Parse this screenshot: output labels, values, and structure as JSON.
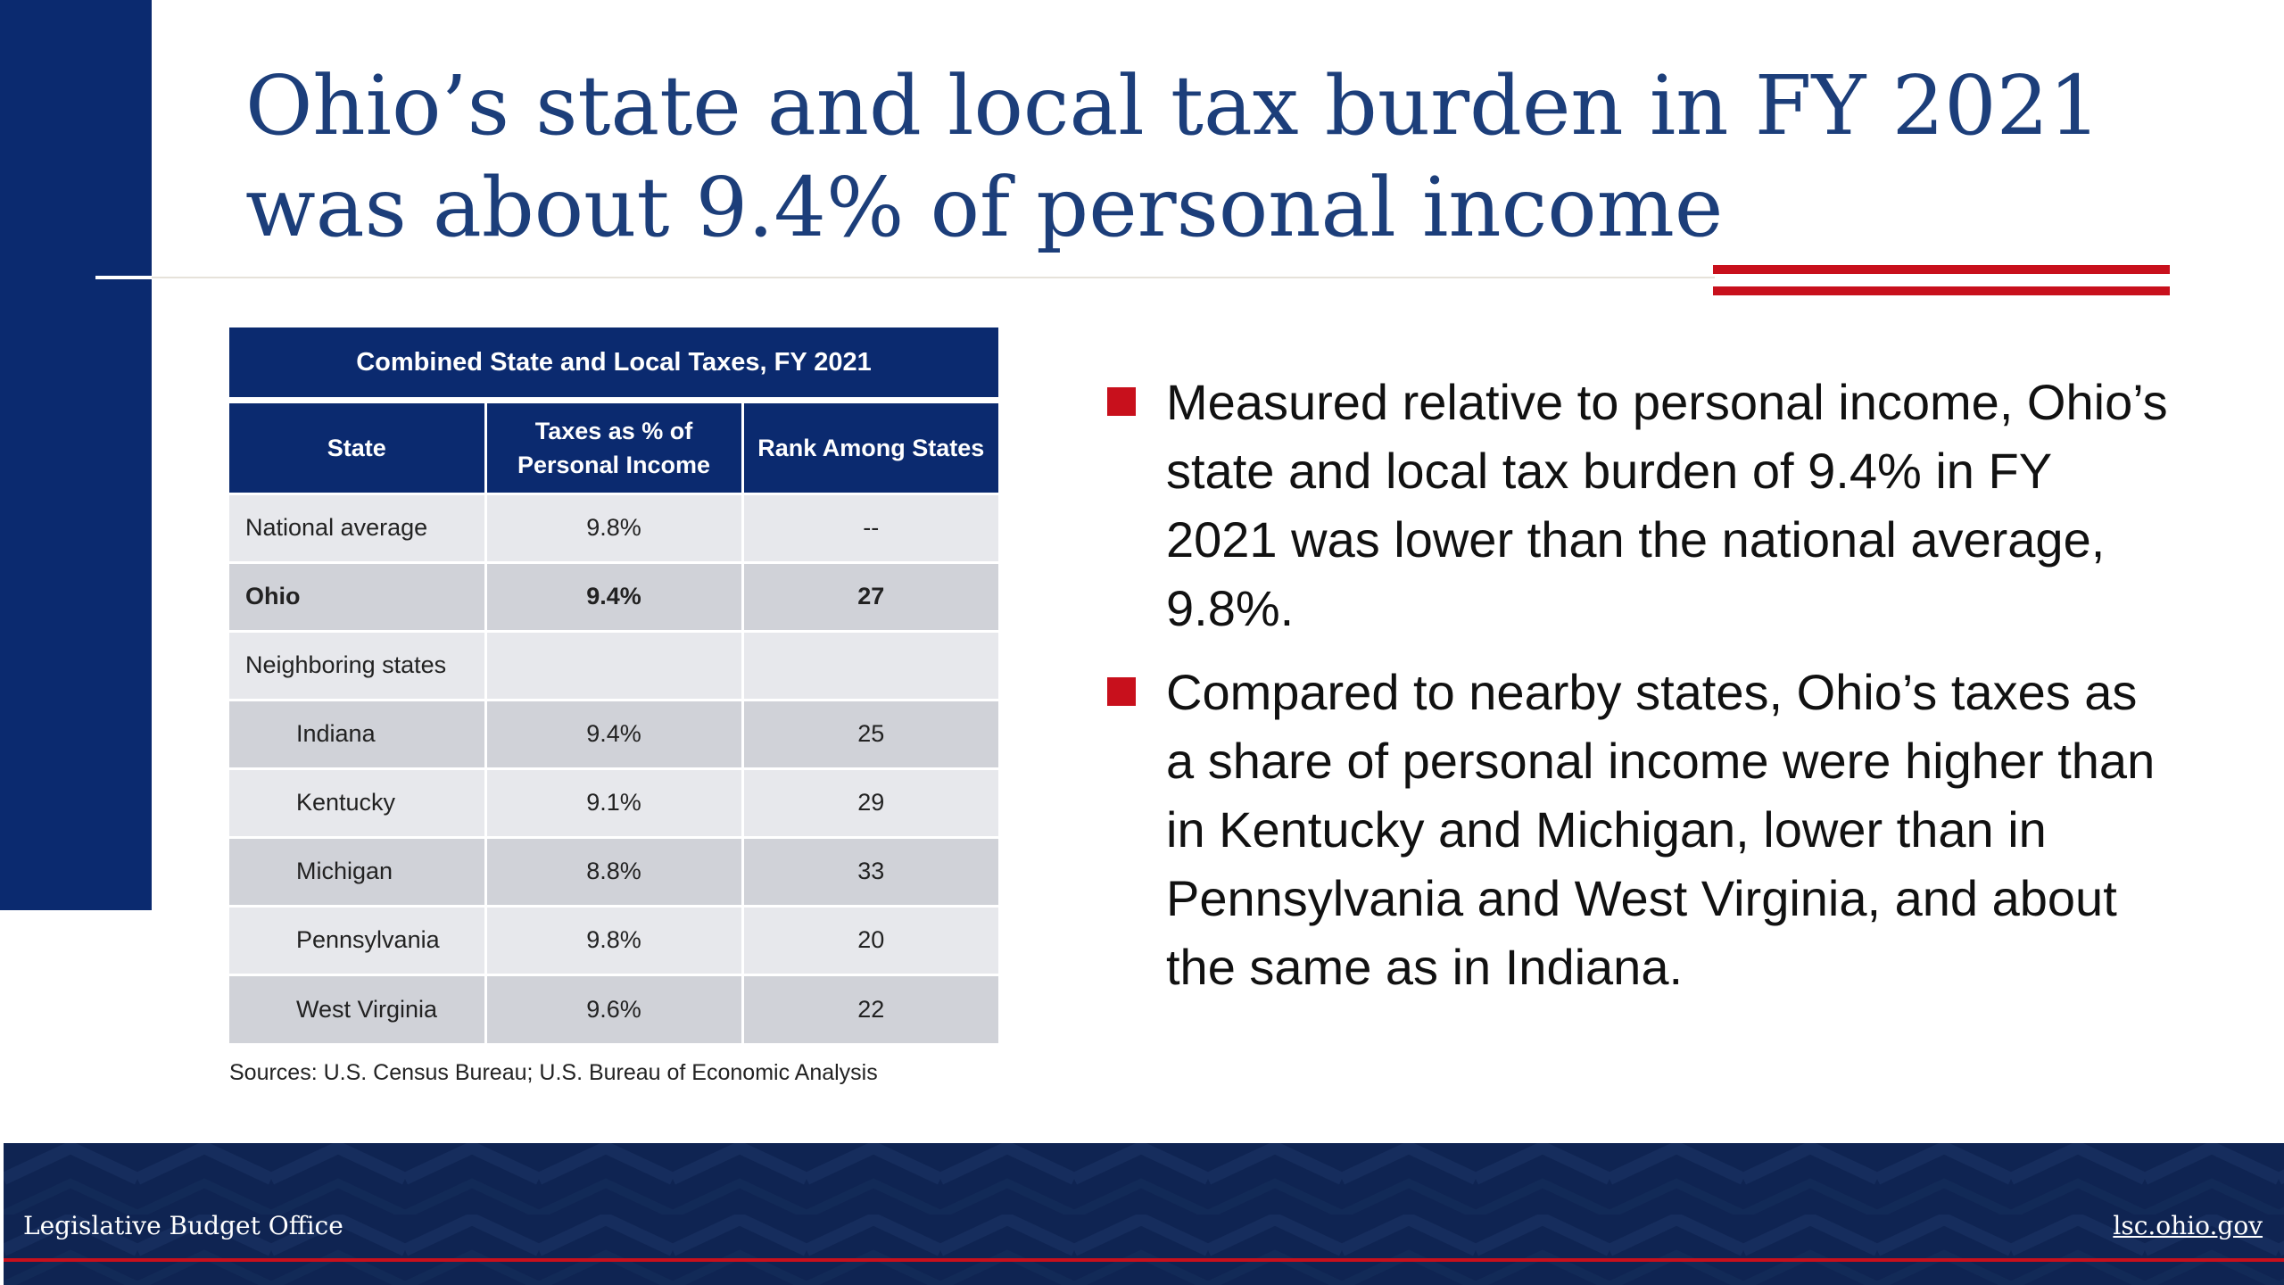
{
  "title": {
    "line1": "Ohio’s state and local tax burden in FY 2021",
    "line2": "was about 9.4% of personal income"
  },
  "table": {
    "caption": "Combined State and Local Taxes, FY 2021",
    "headers": {
      "state": "State",
      "taxes": "Taxes as % of Personal Income",
      "rank": "Rank Among States"
    },
    "rows": [
      {
        "state": "National average",
        "taxes": "9.8%",
        "rank": "--"
      },
      {
        "state": "Ohio",
        "taxes": "9.4%",
        "rank": "27"
      },
      {
        "state": "Neighboring states",
        "taxes": "",
        "rank": ""
      },
      {
        "state": "Indiana",
        "taxes": "9.4%",
        "rank": "25"
      },
      {
        "state": "Kentucky",
        "taxes": "9.1%",
        "rank": "29"
      },
      {
        "state": "Michigan",
        "taxes": "8.8%",
        "rank": "33"
      },
      {
        "state": "Pennsylvania",
        "taxes": "9.8%",
        "rank": "20"
      },
      {
        "state": "West Virginia",
        "taxes": "9.6%",
        "rank": "22"
      }
    ]
  },
  "sources": "Sources: U.S. Census Bureau; U.S. Bureau of Economic Analysis",
  "bullets": [
    "Measured relative to personal income, Ohio’s state and local tax burden of 9.4% in FY 2021 was lower than the national average, 9.8%.",
    "Compared to nearby states, Ohio’s taxes as a share of personal income were higher than in Kentucky and Michigan, lower than in Pennsylvania and West Virginia, and about the same as in Indiana."
  ],
  "footer": {
    "left": "Legislative Budget Office",
    "right": "lsc.ohio.gov"
  },
  "colors": {
    "navy": "#0b2a6f",
    "title_blue": "#1c3e7a",
    "red": "#c8101c",
    "row_light": "#e7e8ec",
    "row_dark": "#d0d2d8"
  }
}
